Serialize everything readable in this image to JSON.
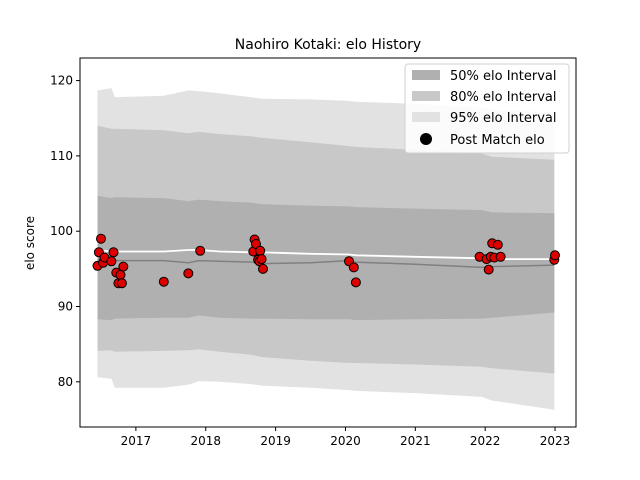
{
  "chart_data": {
    "type": "area",
    "title": "Naohiro Kotaki: elo History",
    "xlabel": "",
    "ylabel": "elo score",
    "xlim": [
      2016.2,
      2023.3
    ],
    "ylim": [
      74,
      123
    ],
    "x_ticks": [
      "2017",
      "2018",
      "2019",
      "2020",
      "2021",
      "2022",
      "2023"
    ],
    "y_ticks": [
      "80",
      "90",
      "100",
      "110",
      "120"
    ],
    "grid": false,
    "legend_position": "top-right",
    "legend": [
      {
        "label": "50% elo Interval",
        "kind": "band",
        "color": "#b0b0b0"
      },
      {
        "label": "80% elo Interval",
        "kind": "band",
        "color": "#c8c8c8"
      },
      {
        "label": "95% elo Interval",
        "kind": "band",
        "color": "#e2e2e2"
      },
      {
        "label": "Post Match elo",
        "kind": "marker",
        "color": "#000000"
      }
    ],
    "colors": {
      "band50": "#b0b0b0",
      "band80": "#c8c8c8",
      "band95": "#e2e2e2",
      "mean_line": "#808080",
      "upper_line": "#ffffff",
      "point_fill": "#dd0000",
      "point_fill_light": "#ee3030"
    },
    "bands": {
      "x": [
        2016.45,
        2016.65,
        2016.7,
        2017.4,
        2017.75,
        2017.9,
        2018.2,
        2018.65,
        2018.8,
        2019.5,
        2020.05,
        2020.15,
        2021.0,
        2021.95,
        2022.1,
        2022.99
      ],
      "mean": [
        96.3,
        96.2,
        96.1,
        96.1,
        95.8,
        96.1,
        96.0,
        95.9,
        95.7,
        95.8,
        96.1,
        95.9,
        95.6,
        95.2,
        95.3,
        95.5
      ],
      "upper_line": [
        97.5,
        97.3,
        97.3,
        97.3,
        97.5,
        97.5,
        97.3,
        97.2,
        97.2,
        97.0,
        96.9,
        96.8,
        96.6,
        96.4,
        96.3,
        96.3
      ],
      "b50_lo": [
        88.3,
        88.2,
        88.4,
        88.5,
        88.5,
        88.8,
        88.5,
        88.4,
        88.4,
        88.3,
        88.3,
        88.2,
        88.3,
        88.4,
        88.5,
        89.2
      ],
      "b50_hi": [
        104.7,
        104.4,
        104.5,
        104.4,
        104.0,
        104.2,
        104.0,
        103.8,
        103.6,
        103.4,
        103.3,
        103.2,
        103.0,
        102.8,
        102.5,
        102.4
      ],
      "b80_lo": [
        84.1,
        84.2,
        84.0,
        84.1,
        84.2,
        84.3,
        84.0,
        83.6,
        83.3,
        82.8,
        82.5,
        82.5,
        82.3,
        82.0,
        81.8,
        81.1
      ],
      "b80_hi": [
        114.0,
        113.6,
        113.6,
        113.4,
        113.0,
        113.2,
        112.9,
        112.6,
        112.4,
        111.8,
        111.3,
        111.2,
        110.8,
        110.3,
        109.9,
        109.5
      ],
      "b95_lo": [
        80.6,
        80.4,
        79.2,
        79.2,
        79.6,
        80.1,
        80.0,
        79.7,
        79.5,
        79.2,
        78.9,
        78.8,
        78.5,
        78.0,
        77.5,
        76.3
      ],
      "b95_hi": [
        118.7,
        119.0,
        117.8,
        118.0,
        118.7,
        118.6,
        118.3,
        117.8,
        117.6,
        117.5,
        117.3,
        117.2,
        116.9,
        116.4,
        116.1,
        115.8
      ]
    },
    "points": {
      "x": [
        2016.45,
        2016.47,
        2016.5,
        2016.53,
        2016.55,
        2016.65,
        2016.68,
        2016.72,
        2016.75,
        2016.78,
        2016.8,
        2016.82,
        2017.4,
        2017.75,
        2017.92,
        2018.68,
        2018.7,
        2018.72,
        2018.75,
        2018.77,
        2018.78,
        2018.8,
        2018.82,
        2020.05,
        2020.12,
        2020.15,
        2021.92,
        2022.02,
        2022.05,
        2022.08,
        2022.1,
        2022.13,
        2022.18,
        2022.22,
        2022.99,
        2023.0
      ],
      "y": [
        95.4,
        97.2,
        99.0,
        95.8,
        96.5,
        96.0,
        97.2,
        94.5,
        93.1,
        94.2,
        93.1,
        95.3,
        93.3,
        94.4,
        97.4,
        97.3,
        98.9,
        98.3,
        96.2,
        96.0,
        97.4,
        96.3,
        95.0,
        96.0,
        95.2,
        93.2,
        96.6,
        96.3,
        94.9,
        96.6,
        98.4,
        96.5,
        98.2,
        96.6,
        96.2,
        96.8
      ]
    }
  }
}
